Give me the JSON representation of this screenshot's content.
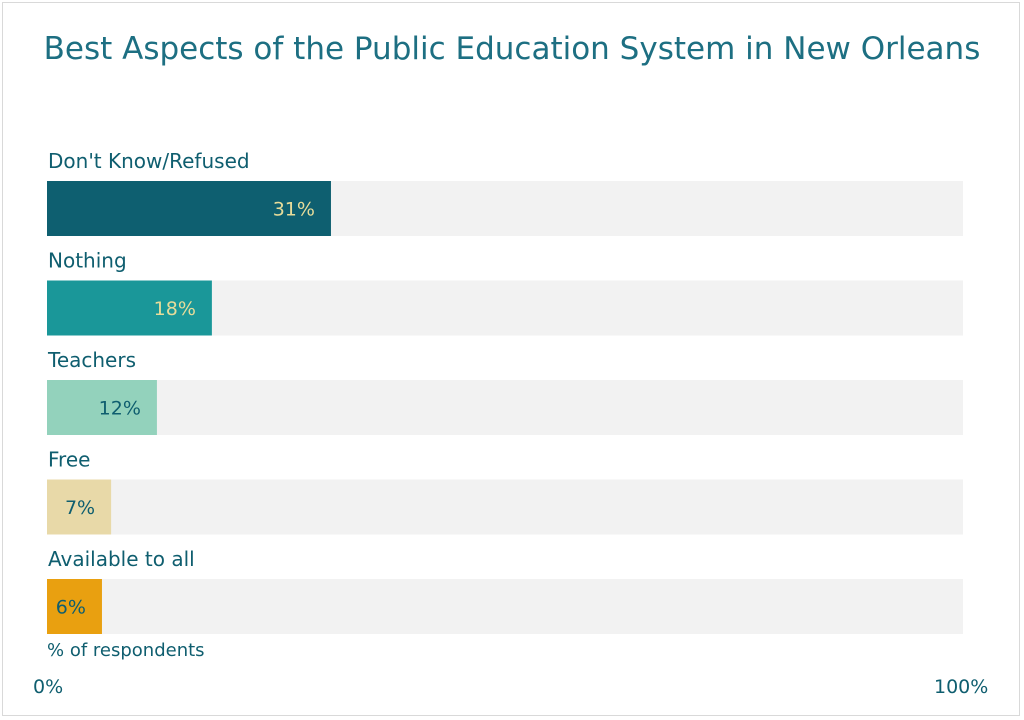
{
  "chart_data": {
    "type": "bar",
    "orientation": "horizontal",
    "title": "Best Aspects of the Public Education System in New Orleans",
    "categories": [
      "Don't Know/Refused",
      "Nothing",
      "Teachers",
      "Free",
      "Available to all"
    ],
    "values": [
      31,
      18,
      12,
      7,
      6
    ],
    "value_labels": [
      "31%",
      "18%",
      "12%",
      "7%",
      "6%"
    ],
    "bar_colors": [
      "#0e5f70",
      "#1a9799",
      "#93d2bc",
      "#e8d9a8",
      "#e9a010"
    ],
    "value_label_colors": [
      "#e7dc9a",
      "#e7dc9a",
      "#0f5e6f",
      "#0f5e6f",
      "#0f5e6f"
    ],
    "track_color": "#f2f2f2",
    "xlim": [
      0,
      100
    ],
    "xlabel": "% of respondents",
    "tick_min_label": "0%",
    "tick_max_label": "100%",
    "grid": false,
    "legend": "none"
  }
}
